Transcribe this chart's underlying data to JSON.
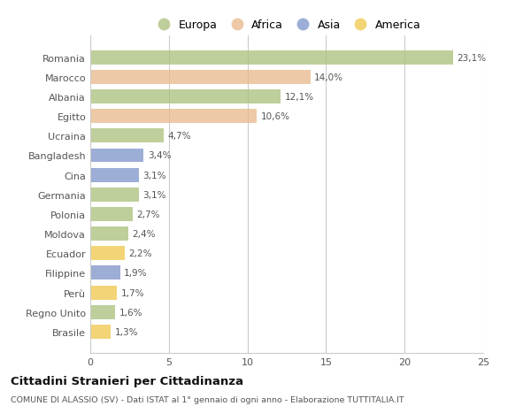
{
  "countries": [
    "Romania",
    "Marocco",
    "Albania",
    "Egitto",
    "Ucraina",
    "Bangladesh",
    "Cina",
    "Germania",
    "Polonia",
    "Moldova",
    "Ecuador",
    "Filippine",
    "Perù",
    "Regno Unito",
    "Brasile"
  ],
  "values": [
    23.1,
    14.0,
    12.1,
    10.6,
    4.7,
    3.4,
    3.1,
    3.1,
    2.7,
    2.4,
    2.2,
    1.9,
    1.7,
    1.6,
    1.3
  ],
  "labels": [
    "23,1%",
    "14,0%",
    "12,1%",
    "10,6%",
    "4,7%",
    "3,4%",
    "3,1%",
    "3,1%",
    "2,7%",
    "2,4%",
    "2,2%",
    "1,9%",
    "1,7%",
    "1,6%",
    "1,3%"
  ],
  "continents": [
    "Europa",
    "Africa",
    "Europa",
    "Africa",
    "Europa",
    "Asia",
    "Asia",
    "Europa",
    "Europa",
    "Europa",
    "America",
    "Asia",
    "America",
    "Europa",
    "America"
  ],
  "colors": {
    "Europa": "#a8c07a",
    "Africa": "#e8b88a",
    "Asia": "#7b93c8",
    "America": "#f0c84a"
  },
  "legend_order": [
    "Europa",
    "Africa",
    "Asia",
    "America"
  ],
  "legend_colors": [
    "#a8c07a",
    "#e8b88a",
    "#7b93c8",
    "#f0c84a"
  ],
  "title": "Cittadini Stranieri per Cittadinanza",
  "subtitle": "COMUNE DI ALASSIO (SV) - Dati ISTAT al 1° gennaio di ogni anno - Elaborazione TUTTITALIA.IT",
  "xlim": [
    0,
    25
  ],
  "xticks": [
    0,
    5,
    10,
    15,
    20,
    25
  ],
  "background_color": "#ffffff",
  "bar_alpha": 0.75,
  "grid_color": "#cccccc"
}
